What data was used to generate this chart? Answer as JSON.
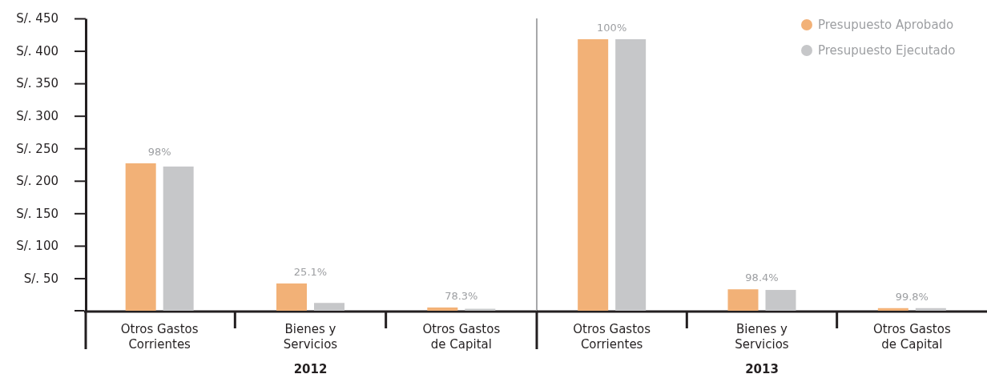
{
  "chart_data": [
    {
      "type": "bar",
      "xlabel": "2012",
      "categories": [
        "Otros Gastos Corrientes",
        "Bienes y Servicios",
        "Otros Gastos de Capital"
      ],
      "series": [
        {
          "color": "#f2b177",
          "values": [
            227,
            42,
            5
          ]
        },
        {
          "color": "#c6c7c9",
          "values": [
            222,
            12,
            3
          ]
        }
      ],
      "ylim": [
        0,
        450
      ],
      "yticks": [
        {
          "value": 50,
          "label": "S/. 50"
        },
        {
          "value": 100,
          "label": "S/. 100"
        },
        {
          "value": 150,
          "label": "S/. 150"
        },
        {
          "value": 200,
          "label": "S/. 200"
        },
        {
          "value": 250,
          "label": "S/. 250"
        },
        {
          "value": 300,
          "label": "S/. 300"
        },
        {
          "value": 350,
          "label": "S/. 350"
        },
        {
          "value": 400,
          "label": "S/. 400"
        },
        {
          "value": 450,
          "label": "S/. 450"
        }
      ],
      "annotations": [
        {
          "text": "98%",
          "x": "Otros Gastos Corrientes",
          "y": 227
        },
        {
          "text": "25.1%",
          "x": "Bienes y Servicios",
          "y": 42
        },
        {
          "text": "78.3%",
          "x": "Otros Gastos de Capital",
          "y": 5
        }
      ],
      "legend": false
    },
    {
      "type": "bar",
      "xlabel": "2013",
      "categories": [
        "Otros Gastos Corrientes",
        "Bienes y Servicios",
        "Otros Gastos de Capital"
      ],
      "series": [
        {
          "name": "Presupuesto Aprobado",
          "color": "#f2b177",
          "values": [
            418,
            33,
            4
          ]
        },
        {
          "name": "Presupuesto Ejecutado",
          "color": "#c6c7c9",
          "values": [
            418,
            32,
            4
          ]
        }
      ],
      "ylim": [
        0,
        450
      ],
      "tick_labels": "x",
      "annotations": [
        {
          "text": "100%",
          "x": "Otros Gastos Corrientes",
          "y": 418
        },
        {
          "text": "98.4%",
          "x": "Bienes y Servicios",
          "y": 33
        },
        {
          "text": "99.8%",
          "x": "Otros Gastos de Capital",
          "y": 4
        }
      ],
      "legend": "top right"
    }
  ]
}
